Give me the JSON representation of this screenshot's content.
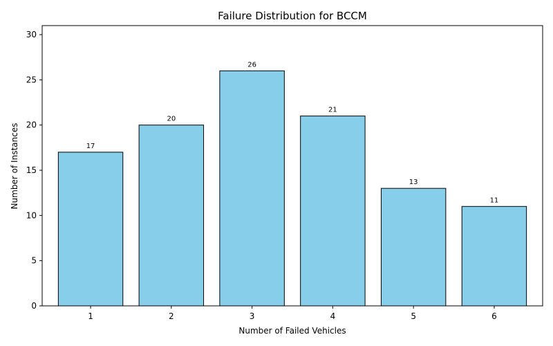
{
  "chart_data": {
    "type": "bar",
    "title": "Failure Distribution for BCCM",
    "xlabel": "Number of Failed Vehicles",
    "ylabel": "Number of Instances",
    "categories": [
      "1",
      "2",
      "3",
      "4",
      "5",
      "6"
    ],
    "values": [
      17,
      20,
      26,
      21,
      13,
      11
    ],
    "ylim": [
      0,
      31
    ],
    "yticks": [
      0,
      5,
      10,
      15,
      20,
      25,
      30
    ],
    "grid": false,
    "bar_color": "#87ceeb",
    "bar_edge_color": "#000000",
    "show_value_labels": true
  }
}
